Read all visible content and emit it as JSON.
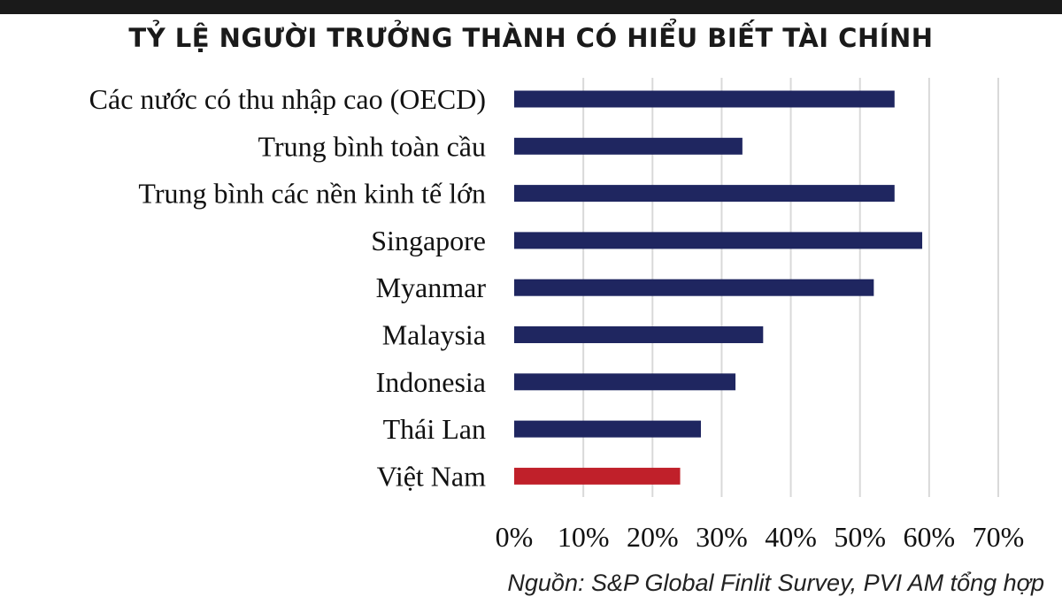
{
  "chart_data": {
    "type": "bar",
    "orientation": "horizontal",
    "title": "TỶ LỆ NGƯỜI TRƯỞNG THÀNH CÓ HIỂU BIẾT TÀI CHÍNH",
    "categories": [
      "Các nước có thu nhập cao (OECD)",
      "Trung bình toàn cầu",
      "Trung bình các nền kinh tế lớn",
      "Singapore",
      "Myanmar",
      "Malaysia",
      "Indonesia",
      "Thái Lan",
      "Việt Nam"
    ],
    "values": [
      55,
      33,
      55,
      59,
      52,
      36,
      32,
      27,
      24
    ],
    "xlim": [
      0,
      70
    ],
    "xticks": [
      "0%",
      "10%",
      "20%",
      "30%",
      "40%",
      "50%",
      "60%",
      "70%"
    ],
    "grid": true,
    "colors": {
      "default_bar": "#1f2660",
      "highlight_bar": "#c0202a",
      "gridline": "#d9d9d9"
    },
    "highlight_category": "Việt Nam"
  },
  "source_note": "Nguồn: S&P Global Finlit Survey, PVI AM tổng hợp"
}
